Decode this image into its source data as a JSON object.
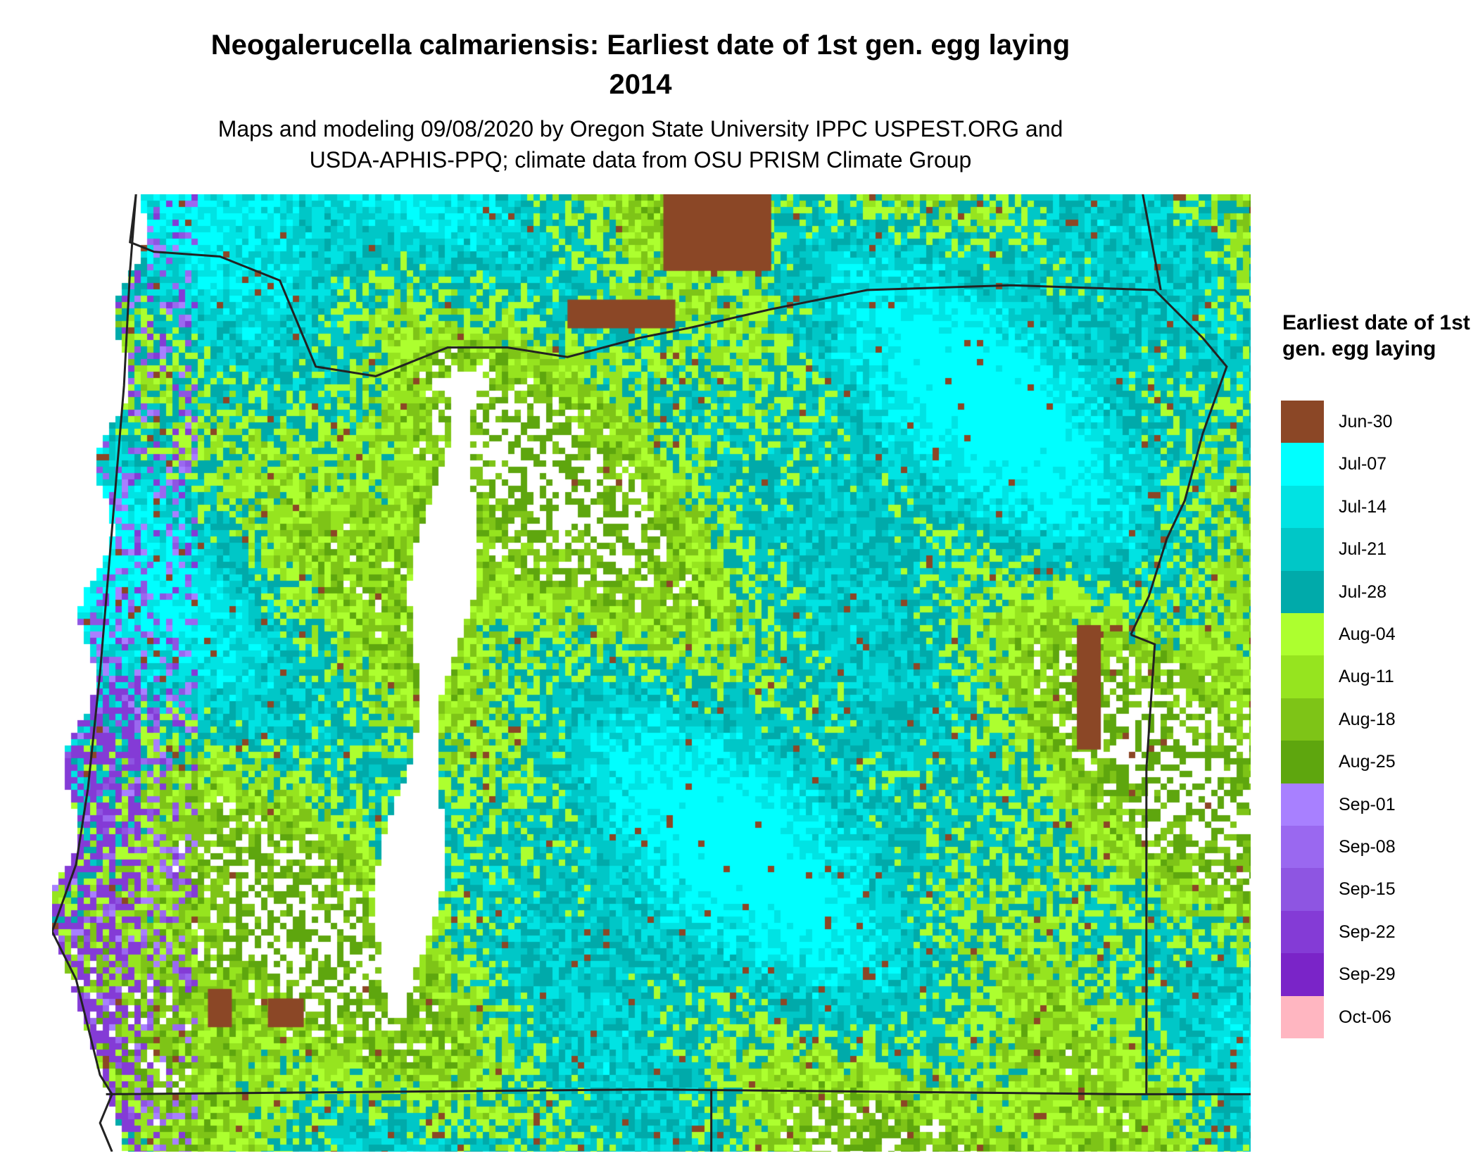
{
  "title": {
    "line1": "Neogalerucella calmariensis: Earliest date of 1st gen. egg laying",
    "line2": "2014"
  },
  "subtitle": {
    "line1": "Maps and modeling 09/08/2020 by Oregon State University IPPC USPEST.ORG and",
    "line2": "USDA-APHIS-PPQ; climate data from OSU PRISM Climate Group"
  },
  "legend": {
    "title": "Earliest date of 1st gen. egg laying",
    "items": [
      {
        "label": "Jun-30",
        "color": "#8B4726"
      },
      {
        "label": "Jul-07",
        "color": "#00FFFF"
      },
      {
        "label": "Jul-14",
        "color": "#00E3E3"
      },
      {
        "label": "Jul-21",
        "color": "#00C7C7"
      },
      {
        "label": "Jul-28",
        "color": "#00AAAA"
      },
      {
        "label": "Aug-04",
        "color": "#ADFF2F"
      },
      {
        "label": "Aug-11",
        "color": "#96E41F"
      },
      {
        "label": "Aug-18",
        "color": "#7EC417"
      },
      {
        "label": "Aug-25",
        "color": "#5EA60E"
      },
      {
        "label": "Sep-01",
        "color": "#A880FF"
      },
      {
        "label": "Sep-08",
        "color": "#9A68F0"
      },
      {
        "label": "Sep-15",
        "color": "#8E55E2"
      },
      {
        "label": "Sep-22",
        "color": "#843BD6"
      },
      {
        "label": "Sep-29",
        "color": "#7A24C8"
      },
      {
        "label": "Oct-06",
        "color": "#FFB6C1"
      }
    ]
  },
  "border_color": "#222222"
}
